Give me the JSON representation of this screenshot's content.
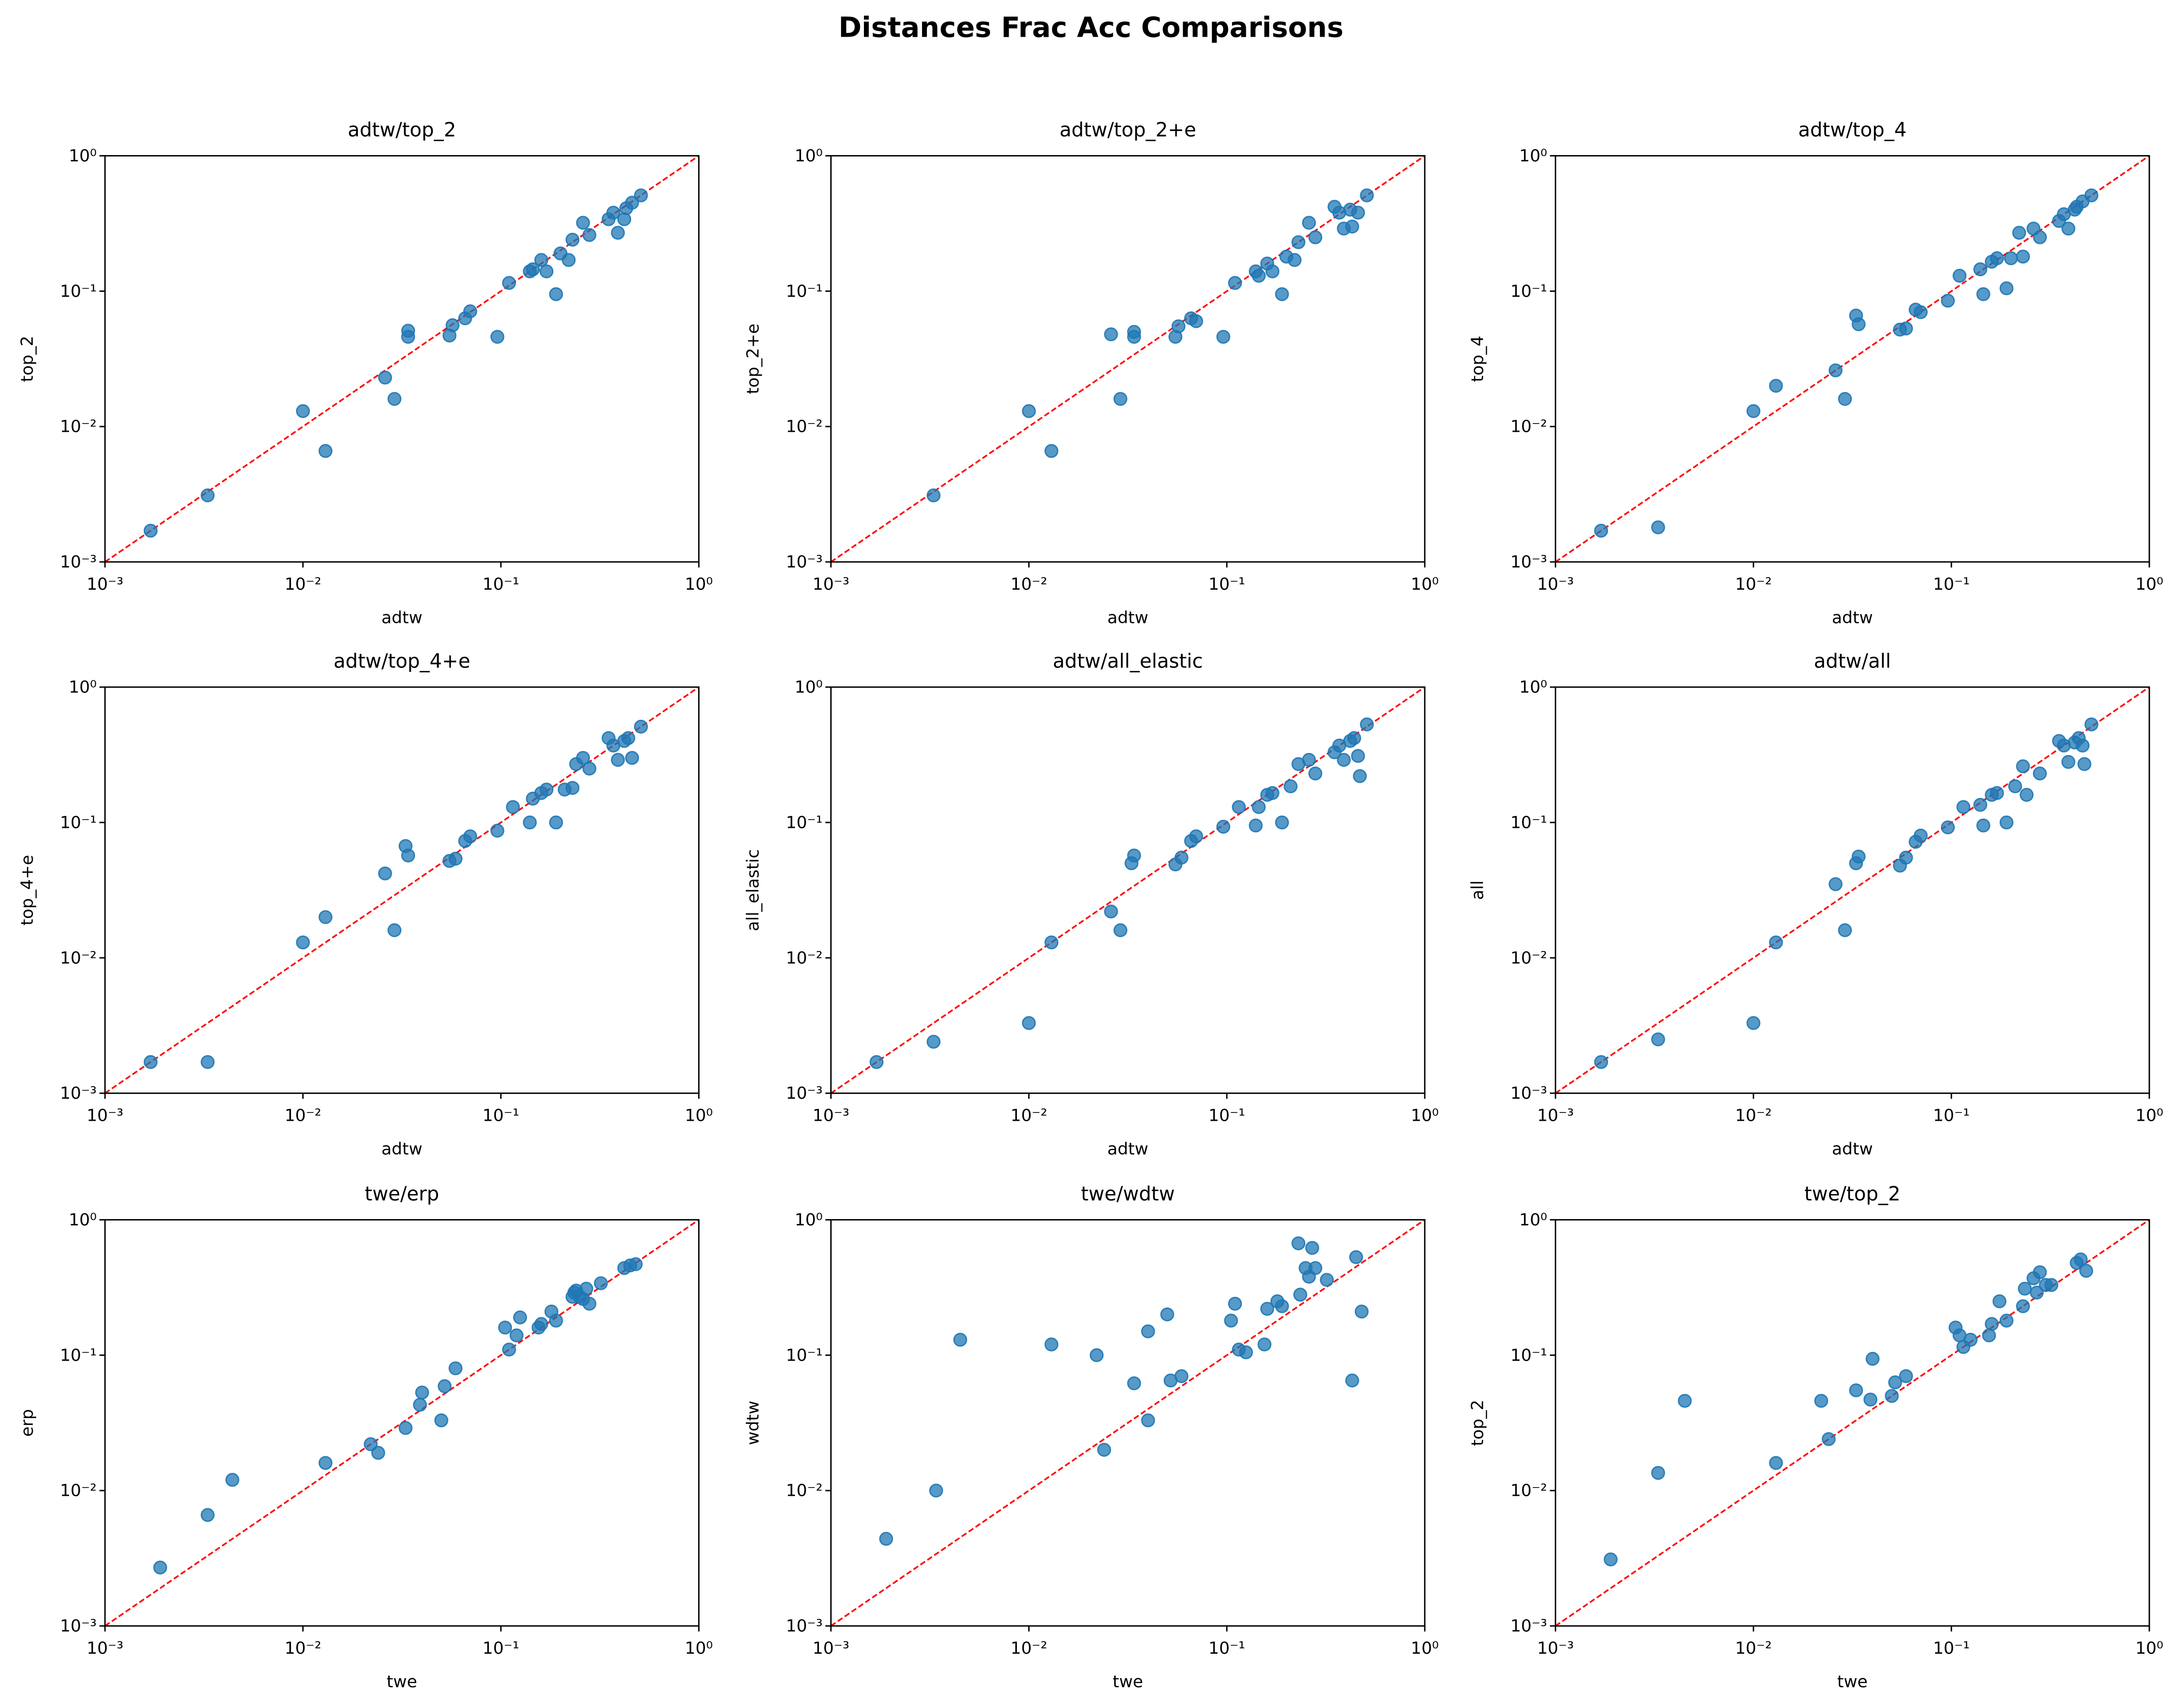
{
  "title": "Distances Frac Acc Comparisons",
  "chart_data": [
    {
      "type": "scatter",
      "title": "adtw/top_2",
      "xlabel": "adtw",
      "ylabel": "top_2",
      "xscale": "log",
      "yscale": "log",
      "color": "#1f77b4",
      "diagonal": true,
      "diagonal_color": "#ff0000",
      "xlim": [
        0.001,
        1
      ],
      "ylim": [
        0.001,
        1
      ],
      "xticks": [
        {
          "value": 0.001,
          "label": "10⁻³"
        },
        {
          "value": 0.01,
          "label": "10⁻²"
        },
        {
          "value": 0.1,
          "label": "10⁻¹"
        },
        {
          "value": 1,
          "label": "10⁰"
        }
      ],
      "yticks": [
        {
          "value": 0.001,
          "label": "10⁻³"
        },
        {
          "value": 0.01,
          "label": "10⁻²"
        },
        {
          "value": 0.1,
          "label": "10⁻¹"
        },
        {
          "value": 1,
          "label": "10⁰"
        }
      ],
      "x": [
        0.0017,
        0.0033,
        0.01,
        0.013,
        0.026,
        0.029,
        0.034,
        0.034,
        0.055,
        0.057,
        0.066,
        0.07,
        0.096,
        0.11,
        0.14,
        0.145,
        0.16,
        0.17,
        0.19,
        0.2,
        0.22,
        0.23,
        0.26,
        0.28,
        0.35,
        0.37,
        0.39,
        0.42,
        0.43,
        0.46,
        0.51
      ],
      "y": [
        0.0017,
        0.0031,
        0.013,
        0.0066,
        0.023,
        0.016,
        0.051,
        0.046,
        0.047,
        0.056,
        0.063,
        0.071,
        0.046,
        0.115,
        0.14,
        0.145,
        0.17,
        0.14,
        0.095,
        0.19,
        0.17,
        0.24,
        0.32,
        0.26,
        0.34,
        0.38,
        0.27,
        0.34,
        0.41,
        0.45,
        0.51
      ]
    },
    {
      "type": "scatter",
      "title": "adtw/top_2+e",
      "xlabel": "adtw",
      "ylabel": "top_2+e",
      "xscale": "log",
      "yscale": "log",
      "color": "#1f77b4",
      "diagonal": true,
      "diagonal_color": "#ff0000",
      "xlim": [
        0.001,
        1
      ],
      "ylim": [
        0.001,
        1
      ],
      "xticks": [
        {
          "value": 0.001,
          "label": "10⁻³"
        },
        {
          "value": 0.01,
          "label": "10⁻²"
        },
        {
          "value": 0.1,
          "label": "10⁻¹"
        },
        {
          "value": 1,
          "label": "10⁰"
        }
      ],
      "yticks": [
        {
          "value": 0.001,
          "label": "10⁻³"
        },
        {
          "value": 0.01,
          "label": "10⁻²"
        },
        {
          "value": 0.1,
          "label": "10⁻¹"
        },
        {
          "value": 1,
          "label": "10⁰"
        }
      ],
      "x": [
        0.0033,
        0.01,
        0.013,
        0.026,
        0.029,
        0.034,
        0.034,
        0.055,
        0.057,
        0.066,
        0.07,
        0.096,
        0.11,
        0.14,
        0.145,
        0.16,
        0.17,
        0.19,
        0.2,
        0.22,
        0.23,
        0.26,
        0.28,
        0.35,
        0.37,
        0.39,
        0.42,
        0.43,
        0.46,
        0.51
      ],
      "y": [
        0.0031,
        0.013,
        0.0066,
        0.048,
        0.016,
        0.05,
        0.046,
        0.046,
        0.055,
        0.063,
        0.06,
        0.046,
        0.115,
        0.14,
        0.13,
        0.16,
        0.14,
        0.095,
        0.18,
        0.17,
        0.23,
        0.32,
        0.25,
        0.42,
        0.38,
        0.29,
        0.4,
        0.3,
        0.38,
        0.51
      ]
    },
    {
      "type": "scatter",
      "title": "adtw/top_4",
      "xlabel": "adtw",
      "ylabel": "top_4",
      "xscale": "log",
      "yscale": "log",
      "color": "#1f77b4",
      "diagonal": true,
      "diagonal_color": "#ff0000",
      "xlim": [
        0.001,
        1
      ],
      "ylim": [
        0.001,
        1
      ],
      "xticks": [
        {
          "value": 0.001,
          "label": "10⁻³"
        },
        {
          "value": 0.01,
          "label": "10⁻²"
        },
        {
          "value": 0.1,
          "label": "10⁻¹"
        },
        {
          "value": 1,
          "label": "10⁰"
        }
      ],
      "yticks": [
        {
          "value": 0.001,
          "label": "10⁻³"
        },
        {
          "value": 0.01,
          "label": "10⁻²"
        },
        {
          "value": 0.1,
          "label": "10⁻¹"
        },
        {
          "value": 1,
          "label": "10⁰"
        }
      ],
      "x": [
        0.0017,
        0.0033,
        0.01,
        0.013,
        0.026,
        0.029,
        0.033,
        0.034,
        0.055,
        0.059,
        0.066,
        0.07,
        0.096,
        0.11,
        0.14,
        0.145,
        0.16,
        0.17,
        0.19,
        0.2,
        0.22,
        0.23,
        0.26,
        0.28,
        0.35,
        0.37,
        0.39,
        0.42,
        0.43,
        0.46,
        0.51
      ],
      "y": [
        0.0017,
        0.0018,
        0.013,
        0.02,
        0.026,
        0.016,
        0.066,
        0.057,
        0.052,
        0.053,
        0.073,
        0.07,
        0.085,
        0.13,
        0.145,
        0.095,
        0.165,
        0.175,
        0.105,
        0.175,
        0.27,
        0.18,
        0.29,
        0.25,
        0.33,
        0.37,
        0.29,
        0.4,
        0.42,
        0.46,
        0.51
      ]
    },
    {
      "type": "scatter",
      "title": "adtw/top_4+e",
      "xlabel": "adtw",
      "ylabel": "top_4+e",
      "xscale": "log",
      "yscale": "log",
      "color": "#1f77b4",
      "diagonal": true,
      "diagonal_color": "#ff0000",
      "xlim": [
        0.001,
        1
      ],
      "ylim": [
        0.001,
        1
      ],
      "xticks": [
        {
          "value": 0.001,
          "label": "10⁻³"
        },
        {
          "value": 0.01,
          "label": "10⁻²"
        },
        {
          "value": 0.1,
          "label": "10⁻¹"
        },
        {
          "value": 1,
          "label": "10⁰"
        }
      ],
      "yticks": [
        {
          "value": 0.001,
          "label": "10⁻³"
        },
        {
          "value": 0.01,
          "label": "10⁻²"
        },
        {
          "value": 0.1,
          "label": "10⁻¹"
        },
        {
          "value": 1,
          "label": "10⁰"
        }
      ],
      "x": [
        0.0017,
        0.0033,
        0.01,
        0.013,
        0.026,
        0.029,
        0.033,
        0.034,
        0.055,
        0.059,
        0.066,
        0.07,
        0.096,
        0.115,
        0.14,
        0.145,
        0.16,
        0.17,
        0.19,
        0.21,
        0.23,
        0.24,
        0.26,
        0.28,
        0.35,
        0.37,
        0.39,
        0.42,
        0.44,
        0.46,
        0.51
      ],
      "y": [
        0.0017,
        0.0017,
        0.013,
        0.02,
        0.042,
        0.016,
        0.067,
        0.057,
        0.052,
        0.054,
        0.073,
        0.079,
        0.087,
        0.13,
        0.1,
        0.15,
        0.165,
        0.175,
        0.1,
        0.175,
        0.18,
        0.27,
        0.3,
        0.25,
        0.42,
        0.37,
        0.29,
        0.4,
        0.42,
        0.3,
        0.51
      ]
    },
    {
      "type": "scatter",
      "title": "adtw/all_elastic",
      "xlabel": "adtw",
      "ylabel": "all_elastic",
      "xscale": "log",
      "yscale": "log",
      "color": "#1f77b4",
      "diagonal": true,
      "diagonal_color": "#ff0000",
      "xlim": [
        0.001,
        1
      ],
      "ylim": [
        0.001,
        1
      ],
      "xticks": [
        {
          "value": 0.001,
          "label": "10⁻³"
        },
        {
          "value": 0.01,
          "label": "10⁻²"
        },
        {
          "value": 0.1,
          "label": "10⁻¹"
        },
        {
          "value": 1,
          "label": "10⁰"
        }
      ],
      "yticks": [
        {
          "value": 0.001,
          "label": "10⁻³"
        },
        {
          "value": 0.01,
          "label": "10⁻²"
        },
        {
          "value": 0.1,
          "label": "10⁻¹"
        },
        {
          "value": 1,
          "label": "10⁰"
        }
      ],
      "x": [
        0.0017,
        0.0033,
        0.01,
        0.013,
        0.026,
        0.029,
        0.033,
        0.034,
        0.055,
        0.059,
        0.066,
        0.07,
        0.096,
        0.115,
        0.14,
        0.145,
        0.16,
        0.17,
        0.19,
        0.21,
        0.23,
        0.26,
        0.28,
        0.35,
        0.37,
        0.39,
        0.42,
        0.44,
        0.46,
        0.47,
        0.51
      ],
      "y": [
        0.0017,
        0.0024,
        0.0033,
        0.013,
        0.022,
        0.016,
        0.05,
        0.057,
        0.049,
        0.055,
        0.073,
        0.079,
        0.093,
        0.13,
        0.095,
        0.13,
        0.16,
        0.165,
        0.1,
        0.185,
        0.27,
        0.29,
        0.23,
        0.33,
        0.37,
        0.29,
        0.4,
        0.42,
        0.31,
        0.22,
        0.53
      ]
    },
    {
      "type": "scatter",
      "title": "adtw/all",
      "xlabel": "adtw",
      "ylabel": "all",
      "xscale": "log",
      "yscale": "log",
      "color": "#1f77b4",
      "diagonal": true,
      "diagonal_color": "#ff0000",
      "xlim": [
        0.001,
        1
      ],
      "ylim": [
        0.001,
        1
      ],
      "xticks": [
        {
          "value": 0.001,
          "label": "10⁻³"
        },
        {
          "value": 0.01,
          "label": "10⁻²"
        },
        {
          "value": 0.1,
          "label": "10⁻¹"
        },
        {
          "value": 1,
          "label": "10⁰"
        }
      ],
      "yticks": [
        {
          "value": 0.001,
          "label": "10⁻³"
        },
        {
          "value": 0.01,
          "label": "10⁻²"
        },
        {
          "value": 0.1,
          "label": "10⁻¹"
        },
        {
          "value": 1,
          "label": "10⁰"
        }
      ],
      "x": [
        0.0017,
        0.0033,
        0.01,
        0.013,
        0.026,
        0.029,
        0.033,
        0.034,
        0.055,
        0.059,
        0.066,
        0.07,
        0.096,
        0.115,
        0.14,
        0.145,
        0.16,
        0.17,
        0.19,
        0.21,
        0.23,
        0.24,
        0.28,
        0.35,
        0.37,
        0.39,
        0.42,
        0.44,
        0.46,
        0.47,
        0.51
      ],
      "y": [
        0.0017,
        0.0025,
        0.0033,
        0.013,
        0.035,
        0.016,
        0.05,
        0.056,
        0.048,
        0.055,
        0.072,
        0.08,
        0.092,
        0.13,
        0.135,
        0.095,
        0.16,
        0.165,
        0.1,
        0.185,
        0.26,
        0.16,
        0.23,
        0.4,
        0.37,
        0.28,
        0.39,
        0.42,
        0.37,
        0.27,
        0.53
      ]
    },
    {
      "type": "scatter",
      "title": "twe/erp",
      "xlabel": "twe",
      "ylabel": "erp",
      "xscale": "log",
      "yscale": "log",
      "color": "#1f77b4",
      "diagonal": true,
      "diagonal_color": "#ff0000",
      "xlim": [
        0.001,
        1
      ],
      "ylim": [
        0.001,
        1
      ],
      "xticks": [
        {
          "value": 0.001,
          "label": "10⁻³"
        },
        {
          "value": 0.01,
          "label": "10⁻²"
        },
        {
          "value": 0.1,
          "label": "10⁻¹"
        },
        {
          "value": 1,
          "label": "10⁰"
        }
      ],
      "yticks": [
        {
          "value": 0.001,
          "label": "10⁻³"
        },
        {
          "value": 0.01,
          "label": "10⁻²"
        },
        {
          "value": 0.1,
          "label": "10⁻¹"
        },
        {
          "value": 1,
          "label": "10⁰"
        }
      ],
      "x": [
        0.0019,
        0.0033,
        0.0044,
        0.013,
        0.022,
        0.024,
        0.033,
        0.039,
        0.04,
        0.05,
        0.052,
        0.059,
        0.105,
        0.11,
        0.12,
        0.125,
        0.155,
        0.16,
        0.18,
        0.19,
        0.23,
        0.235,
        0.24,
        0.25,
        0.26,
        0.27,
        0.28,
        0.32,
        0.42,
        0.45,
        0.48
      ],
      "y": [
        0.0027,
        0.0066,
        0.012,
        0.016,
        0.022,
        0.019,
        0.029,
        0.043,
        0.053,
        0.033,
        0.059,
        0.08,
        0.16,
        0.11,
        0.14,
        0.19,
        0.16,
        0.17,
        0.21,
        0.18,
        0.27,
        0.29,
        0.3,
        0.27,
        0.26,
        0.31,
        0.24,
        0.34,
        0.44,
        0.46,
        0.47
      ]
    },
    {
      "type": "scatter",
      "title": "twe/wdtw",
      "xlabel": "twe",
      "ylabel": "wdtw",
      "xscale": "log",
      "yscale": "log",
      "color": "#1f77b4",
      "diagonal": true,
      "diagonal_color": "#ff0000",
      "xlim": [
        0.001,
        1
      ],
      "ylim": [
        0.001,
        1
      ],
      "xticks": [
        {
          "value": 0.001,
          "label": "10⁻³"
        },
        {
          "value": 0.01,
          "label": "10⁻²"
        },
        {
          "value": 0.1,
          "label": "10⁻¹"
        },
        {
          "value": 1,
          "label": "10⁰"
        }
      ],
      "yticks": [
        {
          "value": 0.001,
          "label": "10⁻³"
        },
        {
          "value": 0.01,
          "label": "10⁻²"
        },
        {
          "value": 0.1,
          "label": "10⁻¹"
        },
        {
          "value": 1,
          "label": "10⁰"
        }
      ],
      "x": [
        0.0019,
        0.0034,
        0.0045,
        0.013,
        0.022,
        0.024,
        0.034,
        0.04,
        0.04,
        0.05,
        0.052,
        0.059,
        0.105,
        0.11,
        0.115,
        0.125,
        0.155,
        0.16,
        0.18,
        0.19,
        0.23,
        0.235,
        0.25,
        0.26,
        0.27,
        0.28,
        0.32,
        0.43,
        0.45,
        0.48
      ],
      "y": [
        0.0044,
        0.01,
        0.13,
        0.12,
        0.1,
        0.02,
        0.062,
        0.033,
        0.15,
        0.2,
        0.065,
        0.07,
        0.18,
        0.24,
        0.11,
        0.105,
        0.12,
        0.22,
        0.25,
        0.23,
        0.67,
        0.28,
        0.44,
        0.38,
        0.62,
        0.44,
        0.36,
        0.065,
        0.53,
        0.21
      ]
    },
    {
      "type": "scatter",
      "title": "twe/top_2",
      "xlabel": "twe",
      "ylabel": "top_2",
      "xscale": "log",
      "yscale": "log",
      "color": "#1f77b4",
      "diagonal": true,
      "diagonal_color": "#ff0000",
      "xlim": [
        0.001,
        1
      ],
      "ylim": [
        0.001,
        1
      ],
      "xticks": [
        {
          "value": 0.001,
          "label": "10⁻³"
        },
        {
          "value": 0.01,
          "label": "10⁻²"
        },
        {
          "value": 0.1,
          "label": "10⁻¹"
        },
        {
          "value": 1,
          "label": "10⁰"
        }
      ],
      "yticks": [
        {
          "value": 0.001,
          "label": "10⁻³"
        },
        {
          "value": 0.01,
          "label": "10⁻²"
        },
        {
          "value": 0.1,
          "label": "10⁻¹"
        },
        {
          "value": 1,
          "label": "10⁰"
        }
      ],
      "x": [
        0.0019,
        0.0033,
        0.0045,
        0.013,
        0.022,
        0.024,
        0.033,
        0.039,
        0.04,
        0.05,
        0.052,
        0.059,
        0.105,
        0.11,
        0.115,
        0.125,
        0.155,
        0.16,
        0.175,
        0.19,
        0.23,
        0.235,
        0.26,
        0.27,
        0.28,
        0.3,
        0.32,
        0.43,
        0.45,
        0.48
      ],
      "y": [
        0.0031,
        0.0135,
        0.046,
        0.016,
        0.046,
        0.024,
        0.055,
        0.047,
        0.094,
        0.05,
        0.063,
        0.07,
        0.16,
        0.14,
        0.115,
        0.13,
        0.14,
        0.17,
        0.25,
        0.18,
        0.23,
        0.31,
        0.37,
        0.29,
        0.41,
        0.33,
        0.33,
        0.48,
        0.51,
        0.42
      ]
    }
  ]
}
